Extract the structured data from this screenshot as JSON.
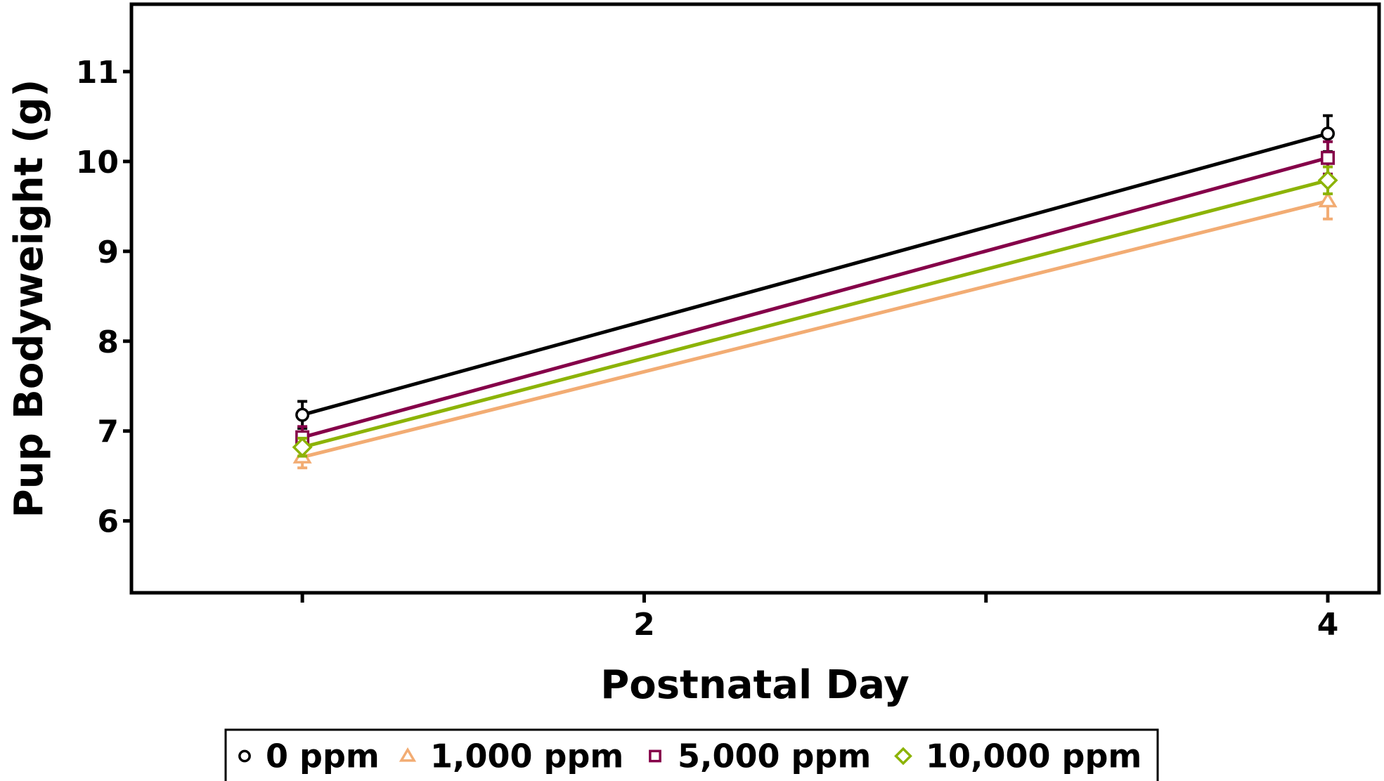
{
  "chart_data": {
    "type": "line",
    "xlabel": "Postnatal Day",
    "ylabel": "Pup Bodyweight (g)",
    "xlim": [
      0.5,
      4.15
    ],
    "ylim": [
      5.2,
      11.75
    ],
    "x_ticks": [
      1,
      2,
      3,
      4
    ],
    "x_tick_labels": [
      "",
      "2",
      "",
      "4"
    ],
    "y_ticks": [
      6,
      7,
      8,
      9,
      10,
      11
    ],
    "y_tick_labels": [
      "6",
      "7",
      "8",
      "9",
      "10",
      "11"
    ],
    "grid": false,
    "legend_position": "bottom",
    "series": [
      {
        "name": "0 ppm",
        "color": "#000000",
        "marker": "circle",
        "x": [
          1,
          4
        ],
        "y": [
          7.18,
          10.31
        ],
        "err": [
          0.15,
          0.2
        ]
      },
      {
        "name": "1,000 ppm",
        "color": "#F2AC73",
        "marker": "triangle",
        "x": [
          1,
          4
        ],
        "y": [
          6.71,
          9.56
        ],
        "err": [
          0.12,
          0.2
        ]
      },
      {
        "name": "5,000 ppm",
        "color": "#850049",
        "marker": "square",
        "x": [
          1,
          4
        ],
        "y": [
          6.93,
          10.04
        ],
        "err": [
          0.12,
          0.18
        ]
      },
      {
        "name": "10,000 ppm",
        "color": "#8CB306",
        "marker": "diamond",
        "x": [
          1,
          4
        ],
        "y": [
          6.82,
          9.79
        ],
        "err": [
          0.1,
          0.15
        ]
      }
    ]
  }
}
